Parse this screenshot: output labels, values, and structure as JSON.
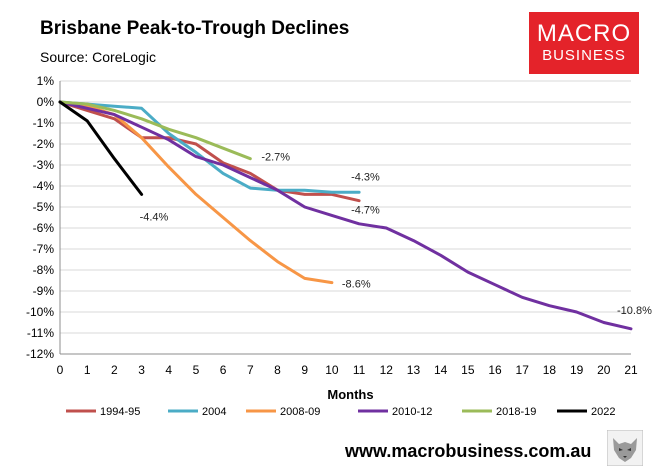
{
  "header": {
    "title": "Brisbane Peak-to-Trough Declines",
    "source": "Source: CoreLogic"
  },
  "logo": {
    "line1": "MACRO",
    "line2": "BUSINESS"
  },
  "footer": {
    "url": "www.macrobusiness.com.au"
  },
  "colors": {
    "logo_bg": "#e4232a",
    "grid": "#d9d9d9"
  },
  "chart_data": {
    "type": "line",
    "title": "Brisbane Peak-to-Trough Declines",
    "xlabel": "Months",
    "ylabel": "",
    "x_ticks": [
      0,
      1,
      2,
      3,
      4,
      5,
      6,
      7,
      8,
      9,
      10,
      11,
      12,
      13,
      14,
      15,
      16,
      17,
      18,
      19,
      20,
      21
    ],
    "y_ticks": [
      1,
      0,
      -1,
      -2,
      -3,
      -4,
      -5,
      -6,
      -7,
      -8,
      -9,
      -10,
      -11,
      -12
    ],
    "y_tick_labels": [
      "1%",
      "0%",
      "-1%",
      "-2%",
      "-3%",
      "-4%",
      "-5%",
      "-6%",
      "-7%",
      "-8%",
      "-9%",
      "-10%",
      "-11%",
      "-12%"
    ],
    "xlim": [
      0,
      21
    ],
    "ylim": [
      -12,
      1
    ],
    "grid": true,
    "legend_position": "bottom",
    "series": [
      {
        "name": "1994-95",
        "color": "#c0504d",
        "x": [
          0,
          1,
          2,
          3,
          4,
          5,
          6,
          7,
          8,
          9,
          10,
          11
        ],
        "values": [
          0,
          -0.4,
          -0.8,
          -1.7,
          -1.7,
          -2.0,
          -2.9,
          -3.4,
          -4.2,
          -4.4,
          -4.4,
          -4.7
        ],
        "end_label": "-4.7%"
      },
      {
        "name": "2004",
        "color": "#4bacc6",
        "x": [
          0,
          1,
          2,
          3,
          4,
          5,
          6,
          7,
          8,
          9,
          10,
          11
        ],
        "values": [
          0,
          -0.1,
          -0.2,
          -0.3,
          -1.5,
          -2.4,
          -3.4,
          -4.1,
          -4.2,
          -4.2,
          -4.3,
          -4.3
        ],
        "end_label": "-4.3%"
      },
      {
        "name": "2008-09",
        "color": "#f79646",
        "x": [
          0,
          1,
          2,
          3,
          4,
          5,
          6,
          7,
          8,
          9,
          10
        ],
        "values": [
          0,
          -0.2,
          -0.6,
          -1.7,
          -3.1,
          -4.4,
          -5.5,
          -6.6,
          -7.6,
          -8.4,
          -8.6
        ],
        "end_label": "-8.6%"
      },
      {
        "name": "2010-12",
        "color": "#7030a0",
        "x": [
          0,
          1,
          2,
          3,
          4,
          5,
          6,
          7,
          8,
          9,
          10,
          11,
          12,
          13,
          14,
          15,
          16,
          17,
          18,
          19,
          20,
          21
        ],
        "values": [
          0,
          -0.3,
          -0.6,
          -1.2,
          -1.8,
          -2.6,
          -3.0,
          -3.6,
          -4.2,
          -5.0,
          -5.4,
          -5.8,
          -6.0,
          -6.6,
          -7.3,
          -8.1,
          -8.7,
          -9.3,
          -9.7,
          -10.0,
          -10.5,
          -10.8
        ],
        "end_label": "-10.8%"
      },
      {
        "name": "2018-19",
        "color": "#9bbb59",
        "x": [
          0,
          1,
          2,
          3,
          4,
          5,
          6,
          7
        ],
        "values": [
          0,
          -0.1,
          -0.4,
          -0.8,
          -1.3,
          -1.7,
          -2.2,
          -2.7
        ],
        "end_label": "-2.7%"
      },
      {
        "name": "2022",
        "color": "#000000",
        "x": [
          0,
          1,
          2,
          3
        ],
        "values": [
          0,
          -0.9,
          -2.7,
          -4.4
        ],
        "end_label": "-4.4%"
      }
    ]
  }
}
